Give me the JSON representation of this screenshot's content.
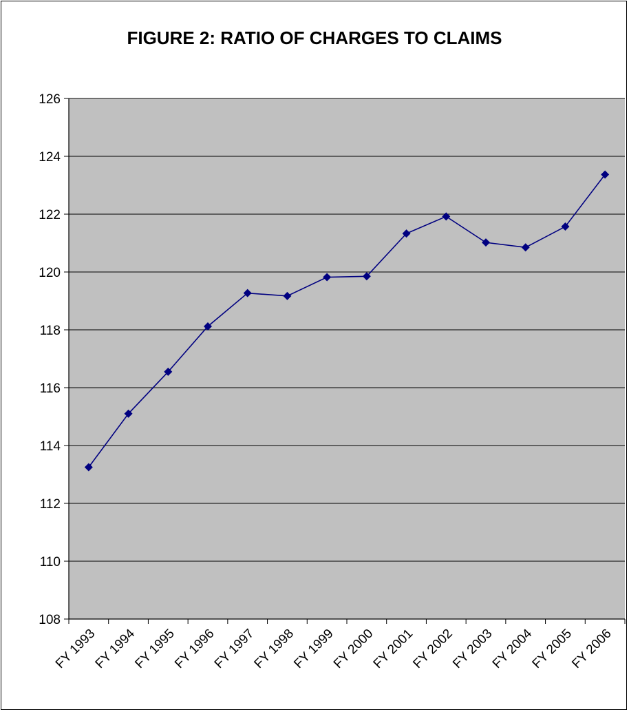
{
  "chart_data": {
    "type": "line",
    "title": "FIGURE 2:   RATIO OF CHARGES TO CLAIMS",
    "categories": [
      "FY 1993",
      "FY 1994",
      "FY 1995",
      "FY 1996",
      "FY 1997",
      "FY 1998",
      "FY 1999",
      "FY 2000",
      "FY 2001",
      "FY 2002",
      "FY 2003",
      "FY 2004",
      "FY 2005",
      "FY 2006"
    ],
    "series": [
      {
        "values": [
          113.25,
          115.1,
          116.55,
          118.12,
          119.27,
          119.17,
          119.82,
          119.85,
          121.33,
          121.92,
          121.02,
          120.85,
          121.57,
          123.37
        ]
      }
    ],
    "ylim": [
      108,
      126
    ],
    "yticks": [
      108,
      110,
      112,
      114,
      116,
      118,
      120,
      122,
      124,
      126
    ],
    "grid": true,
    "legend": "none",
    "colors": {
      "plot_background": "#c0c0c0",
      "line": "#000080",
      "marker": "#000080",
      "gridline": "#000000"
    }
  }
}
